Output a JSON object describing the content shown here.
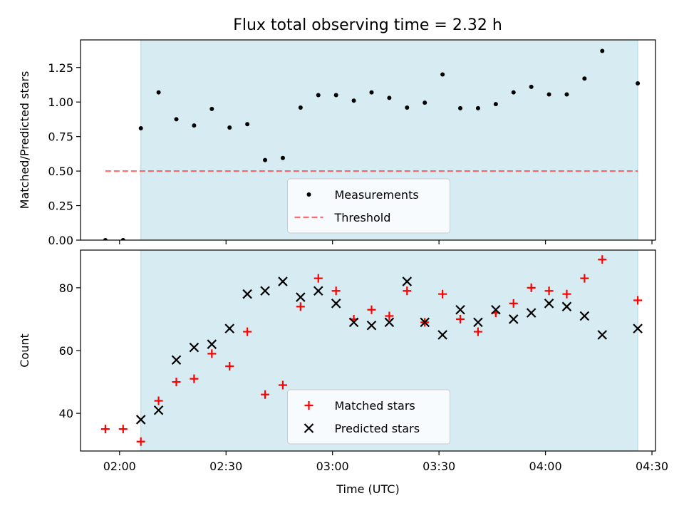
{
  "title": "Flux total observing time = 2.32 h",
  "colors": {
    "shade": "#add8e6",
    "measurement": "#000000",
    "threshold": "#ff0000",
    "matched": "#ff0000",
    "predicted": "#000000"
  },
  "chart_data": [
    {
      "type": "scatter",
      "ylabel": "Matched/Predicted stars",
      "ylim": [
        0,
        1.45
      ],
      "yticks": [
        0.0,
        0.25,
        0.5,
        0.75,
        1.0,
        1.25
      ],
      "ytick_labels": [
        "0.00",
        "0.25",
        "0.50",
        "0.75",
        "1.00",
        "1.25"
      ],
      "xlim": [
        "01:49",
        "04:31"
      ],
      "shaded_span": [
        "02:06",
        "04:26"
      ],
      "legend_position": "lower center",
      "series": [
        {
          "name": "Measurements",
          "marker": "dot",
          "x": [
            "01:56",
            "02:01",
            "02:06",
            "02:11",
            "02:16",
            "02:21",
            "02:26",
            "02:31",
            "02:36",
            "02:41",
            "02:46",
            "02:51",
            "02:56",
            "03:01",
            "03:06",
            "03:11",
            "03:16",
            "03:21",
            "03:26",
            "03:31",
            "03:36",
            "03:41",
            "03:46",
            "03:51",
            "03:56",
            "04:01",
            "04:06",
            "04:11",
            "04:16",
            "04:26"
          ],
          "y": [
            0.0,
            0.0,
            0.81,
            1.07,
            0.875,
            0.83,
            0.95,
            0.815,
            0.84,
            0.58,
            0.595,
            0.96,
            1.05,
            1.05,
            1.01,
            1.07,
            1.03,
            0.96,
            0.995,
            1.2,
            0.955,
            0.955,
            0.985,
            1.07,
            1.11,
            1.055,
            1.055,
            1.17,
            1.37,
            1.135
          ]
        },
        {
          "name": "Threshold",
          "marker": "dashed-line",
          "x": [
            "01:56",
            "04:26"
          ],
          "y": [
            0.5,
            0.5
          ]
        }
      ]
    },
    {
      "type": "scatter",
      "xlabel": "Time (UTC)",
      "ylabel": "Count",
      "ylim": [
        28,
        92
      ],
      "yticks": [
        40,
        60,
        80
      ],
      "ytick_labels": [
        "40",
        "60",
        "80"
      ],
      "xlim": [
        "01:49",
        "04:31"
      ],
      "xticks": [
        "02:00",
        "02:30",
        "03:00",
        "03:30",
        "04:00",
        "04:30"
      ],
      "xtick_labels": [
        "02:00",
        "02:30",
        "03:00",
        "03:30",
        "04:00",
        "04:30"
      ],
      "shaded_span": [
        "02:06",
        "04:26"
      ],
      "legend_position": "lower center",
      "series": [
        {
          "name": "Matched stars",
          "marker": "plus",
          "x": [
            "01:56",
            "02:01",
            "02:06",
            "02:11",
            "02:16",
            "02:21",
            "02:26",
            "02:31",
            "02:36",
            "02:41",
            "02:46",
            "02:51",
            "02:56",
            "03:01",
            "03:06",
            "03:11",
            "03:16",
            "03:21",
            "03:26",
            "03:31",
            "03:36",
            "03:41",
            "03:46",
            "03:51",
            "03:56",
            "04:01",
            "04:06",
            "04:11",
            "04:16",
            "04:26"
          ],
          "y": [
            35,
            35,
            31,
            44,
            50,
            51,
            59,
            55,
            66,
            46,
            49,
            74,
            83,
            79,
            70,
            73,
            71,
            79,
            69,
            78,
            70,
            66,
            72,
            75,
            80,
            79,
            78,
            83,
            89,
            76
          ]
        },
        {
          "name": "Predicted stars",
          "marker": "x",
          "x": [
            "02:06",
            "02:11",
            "02:16",
            "02:21",
            "02:26",
            "02:31",
            "02:36",
            "02:41",
            "02:46",
            "02:51",
            "02:56",
            "03:01",
            "03:06",
            "03:11",
            "03:16",
            "03:21",
            "03:26",
            "03:31",
            "03:36",
            "03:41",
            "03:46",
            "03:51",
            "03:56",
            "04:01",
            "04:06",
            "04:11",
            "04:16",
            "04:26"
          ],
          "y": [
            38,
            41,
            57,
            61,
            62,
            67,
            78,
            79,
            82,
            77,
            79,
            75,
            69,
            68,
            69,
            82,
            69,
            65,
            73,
            69,
            73,
            70,
            72,
            75,
            74,
            71,
            65,
            67
          ]
        }
      ]
    }
  ]
}
